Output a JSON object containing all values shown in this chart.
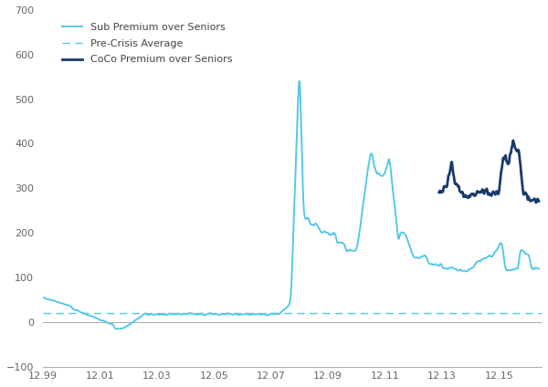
{
  "pre_crisis_avg": 20,
  "sub_color": "#55C8E8",
  "coco_color": "#1A3A6B",
  "pre_crisis_color": "#55C8E8",
  "background_color": "#FFFFFF",
  "xlim": [
    1999,
    2016.5
  ],
  "ylim": [
    -100,
    700
  ],
  "yticks": [
    -100,
    0,
    100,
    200,
    300,
    400,
    500,
    600,
    700
  ],
  "xtick_labels": [
    "12.99",
    "12.01",
    "12.03",
    "12.05",
    "12.07",
    "12.09",
    "12.11",
    "12.13",
    "12.15"
  ],
  "xtick_positions": [
    1999,
    2001,
    2003,
    2005,
    2007,
    2009,
    2011,
    2013,
    2015
  ],
  "legend_sub": "Sub Premium over Seniors",
  "legend_pre": "Pre-Crisis Average",
  "legend_coco": "CoCo Premium over Seniors"
}
